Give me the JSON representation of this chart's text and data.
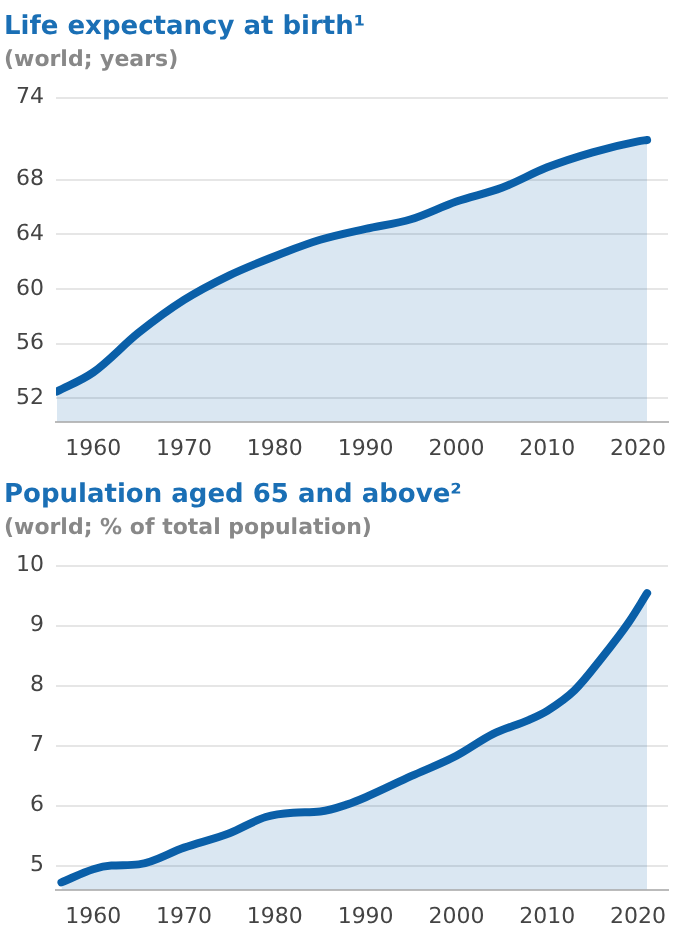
{
  "chart_data": [
    {
      "type": "area",
      "title": "Life expectancy at birth¹",
      "subtitle": "(world; years)",
      "x": [
        1956,
        1960,
        1965,
        1970,
        1975,
        1980,
        1985,
        1990,
        1995,
        2000,
        2005,
        2010,
        2015,
        2020,
        2021
      ],
      "series": [
        {
          "color": "#0a5fa8",
          "values": [
            52.5,
            53.9,
            56.8,
            59.2,
            61.0,
            62.4,
            63.6,
            64.4,
            65.1,
            66.4,
            67.4,
            68.9,
            70.0,
            70.8,
            70.9
          ]
        }
      ],
      "xlim": [
        1955.9,
        2023.3
      ],
      "xticks": [
        1960,
        1970,
        1980,
        1990,
        2000,
        2010,
        2020
      ],
      "ylim": [
        50.3,
        74
      ],
      "yticks": [
        52,
        56,
        60,
        64,
        68,
        74
      ],
      "grid": "y",
      "legend": false
    },
    {
      "type": "area",
      "title": "Population aged 65 and above²",
      "subtitle": "(world; % of total population)",
      "x": [
        1956.5,
        1960,
        1962,
        1965,
        1970,
        1975,
        1979,
        1982,
        1985,
        1988,
        1990,
        1995,
        2000,
        2004,
        2008,
        2010,
        2013,
        2016,
        2019,
        2021
      ],
      "series": [
        {
          "color": "#0a5fa8",
          "values": [
            4.72,
            4.94,
            5.0,
            5.02,
            5.3,
            5.54,
            5.81,
            5.88,
            5.9,
            6.02,
            6.14,
            6.49,
            6.83,
            7.19,
            7.43,
            7.58,
            7.92,
            8.46,
            9.06,
            9.54
          ]
        }
      ],
      "xlim": [
        1955.9,
        2023.3
      ],
      "xticks": [
        1960,
        1970,
        1980,
        1990,
        2000,
        2010,
        2020
      ],
      "ylim": [
        4.6,
        10
      ],
      "yticks": [
        5,
        6,
        7,
        8,
        9,
        10
      ],
      "grid": "y",
      "legend": false
    }
  ]
}
